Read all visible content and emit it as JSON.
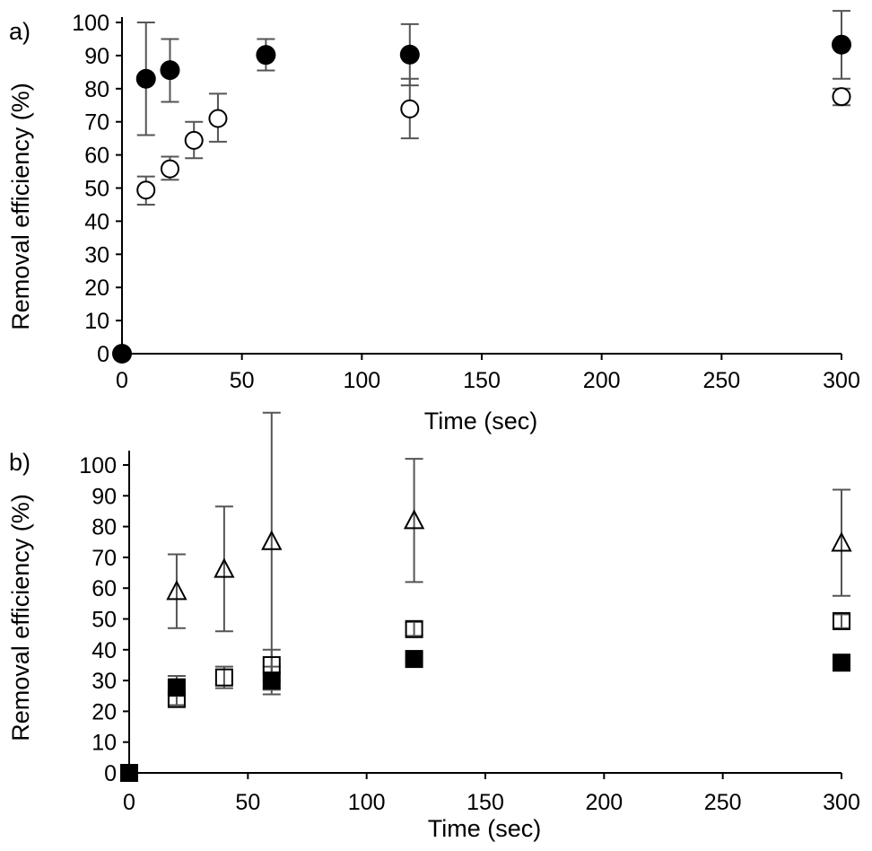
{
  "chart_data": [
    {
      "panel_label": "a)",
      "type": "scatter",
      "xlabel": "Time (sec)",
      "ylabel": "Removal efficiency (%)",
      "xlim": [
        0,
        300
      ],
      "ylim": [
        0,
        100
      ],
      "x_ticks": [
        0,
        50,
        100,
        150,
        200,
        250,
        300
      ],
      "y_ticks": [
        0,
        10,
        20,
        30,
        40,
        50,
        60,
        70,
        80,
        90,
        100
      ],
      "grid": false,
      "series": [
        {
          "marker": "filled-circle",
          "points": [
            {
              "x": 0,
              "y": 0
            },
            {
              "x": 10,
              "y": 83,
              "err_low": 66,
              "err_high": 100
            },
            {
              "x": 20,
              "y": 85.6,
              "err_low": 76,
              "err_high": 95
            },
            {
              "x": 60,
              "y": 90.2,
              "err_low": 85.5,
              "err_high": 95
            },
            {
              "x": 120,
              "y": 90.3,
              "err_low": 81,
              "err_high": 99.5
            },
            {
              "x": 300,
              "y": 93.3,
              "err_low": 83,
              "err_high": 103.5
            }
          ]
        },
        {
          "marker": "open-circle",
          "points": [
            {
              "x": 10,
              "y": 49.4,
              "err_low": 45,
              "err_high": 53.5
            },
            {
              "x": 20,
              "y": 55.8,
              "err_low": 52.5,
              "err_high": 59.5
            },
            {
              "x": 30,
              "y": 64.4,
              "err_low": 59,
              "err_high": 70
            },
            {
              "x": 40,
              "y": 71,
              "err_low": 64,
              "err_high": 78.5
            },
            {
              "x": 120,
              "y": 73.9,
              "err_low": 65,
              "err_high": 83
            },
            {
              "x": 300,
              "y": 77.6,
              "err_low": 75,
              "err_high": 80
            }
          ]
        }
      ]
    },
    {
      "panel_label": "b)",
      "type": "scatter",
      "xlabel": "Time (sec)",
      "ylabel": "Removal efficiency (%)",
      "xlim": [
        0,
        300
      ],
      "ylim": [
        0,
        100
      ],
      "x_ticks": [
        0,
        50,
        100,
        150,
        200,
        250,
        300
      ],
      "y_ticks": [
        0,
        10,
        20,
        30,
        40,
        50,
        60,
        70,
        80,
        90,
        100
      ],
      "grid": false,
      "series": [
        {
          "marker": "open-triangle",
          "points": [
            {
              "x": 20,
              "y": 58.8,
              "err_low": 47,
              "err_high": 71
            },
            {
              "x": 40,
              "y": 66,
              "err_low": 46,
              "err_high": 86.5
            },
            {
              "x": 60,
              "y": 75,
              "err_low": 27,
              "err_high": 117
            },
            {
              "x": 120,
              "y": 81.8,
              "err_low": 62,
              "err_high": 102
            },
            {
              "x": 300,
              "y": 74.5,
              "err_low": 57.5,
              "err_high": 92
            }
          ]
        },
        {
          "marker": "open-square",
          "points": [
            {
              "x": 20,
              "y": 24,
              "err_low": 22,
              "err_high": 26
            },
            {
              "x": 40,
              "y": 31,
              "err_low": 27.5,
              "err_high": 34.5
            },
            {
              "x": 60,
              "y": 35,
              "err_low": 30,
              "err_high": 40
            },
            {
              "x": 120,
              "y": 46.7,
              "err_low": 44.5,
              "err_high": 49
            },
            {
              "x": 300,
              "y": 49.3,
              "err_low": 47,
              "err_high": 51.5
            }
          ]
        },
        {
          "marker": "filled-square",
          "points": [
            {
              "x": 0,
              "y": 0
            },
            {
              "x": 20,
              "y": 27.8,
              "err_low": 25,
              "err_high": 31.5
            },
            {
              "x": 60,
              "y": 30,
              "err_low": 25.5,
              "err_high": 34.5
            },
            {
              "x": 120,
              "y": 37
            },
            {
              "x": 300,
              "y": 35.8
            }
          ]
        }
      ]
    }
  ]
}
